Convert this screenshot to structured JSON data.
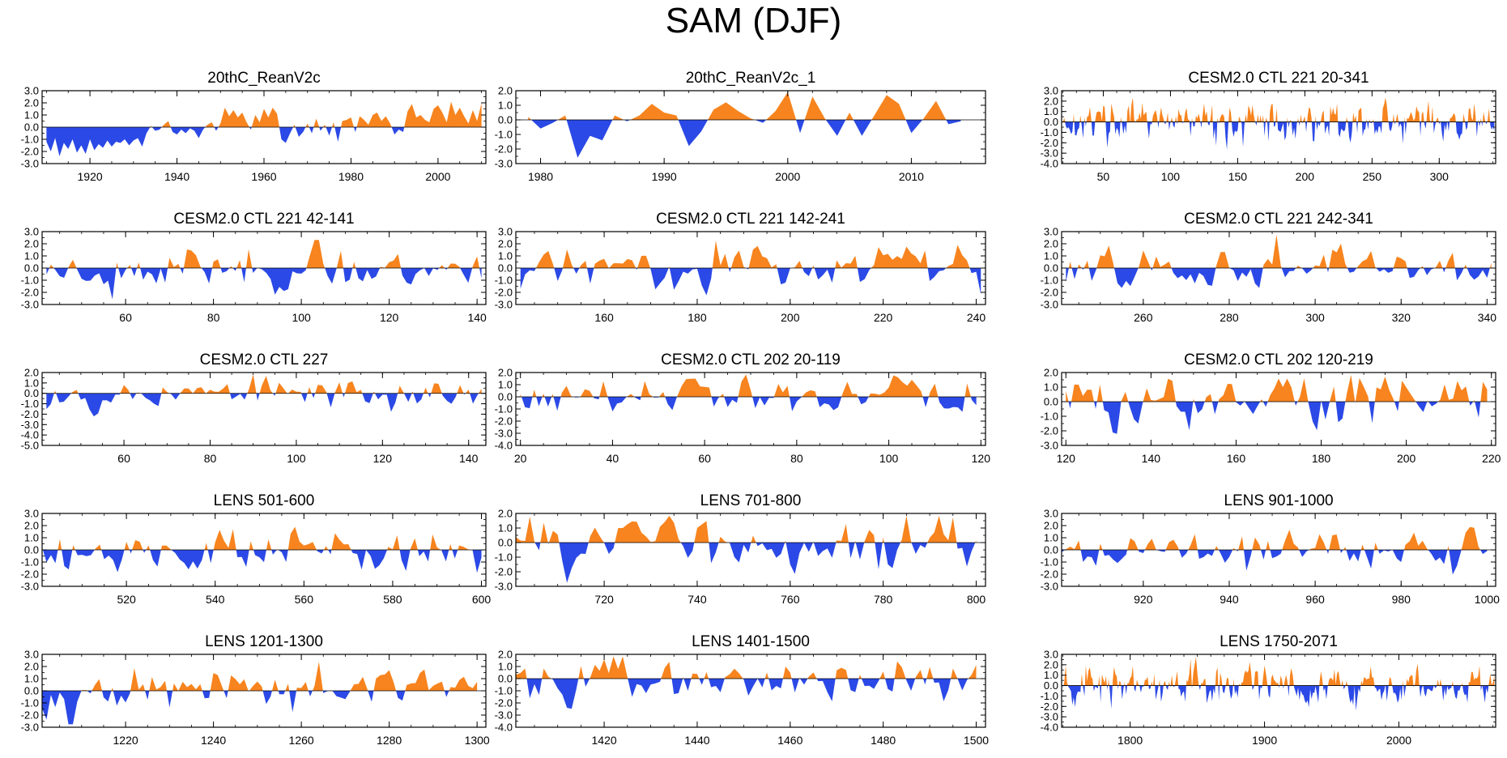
{
  "figure": {
    "title": "SAM (DJF)"
  },
  "colors": {
    "positive": "#f7841e",
    "negative": "#2b49e6",
    "frame": "#000000"
  },
  "chart_data": [
    {
      "type": "area",
      "title": "20thC_ReanV2c",
      "xlim": [
        1909,
        2011
      ],
      "ylim": [
        -3.0,
        3.0
      ],
      "yticks": [
        "3.0",
        "2.0",
        "1.0",
        "0.0",
        "-1.0",
        "-2.0",
        "-3.0"
      ],
      "xticks": [
        1920,
        1940,
        1960,
        1980,
        2000
      ],
      "x": [
        1910,
        1911,
        1912,
        1913,
        1914,
        1915,
        1916,
        1917,
        1918,
        1919,
        1920,
        1921,
        1922,
        1923,
        1924,
        1925,
        1926,
        1927,
        1928,
        1929,
        1930,
        1931,
        1932,
        1933,
        1934,
        1935,
        1936,
        1937,
        1938,
        1939,
        1940,
        1941,
        1942,
        1943,
        1944,
        1945,
        1946,
        1947,
        1948,
        1949,
        1950,
        1951,
        1952,
        1953,
        1954,
        1955,
        1956,
        1957,
        1958,
        1959,
        1960,
        1961,
        1962,
        1963,
        1964,
        1965,
        1966,
        1967,
        1968,
        1969,
        1970,
        1971,
        1972,
        1973,
        1974,
        1975,
        1976,
        1977,
        1978,
        1979,
        1980,
        1981,
        1982,
        1983,
        1984,
        1985,
        1986,
        1987,
        1988,
        1989,
        1990,
        1991,
        1992,
        1993,
        1994,
        1995,
        1996,
        1997,
        1998,
        1999,
        2000,
        2001,
        2002,
        2003,
        2004,
        2005,
        2006,
        2007,
        2008,
        2009,
        2010
      ],
      "values": [
        -1.2,
        -2.0,
        -0.9,
        -2.4,
        -1.3,
        -1.8,
        -1.0,
        -2.1,
        -1.5,
        -2.2,
        -1.0,
        -1.9,
        -1.4,
        -1.7,
        -1.1,
        -1.6,
        -1.2,
        -1.3,
        -1.0,
        -1.5,
        -1.1,
        -0.9,
        -1.6,
        -0.5,
        0.1,
        -0.3,
        -0.2,
        0.2,
        0.5,
        -0.4,
        -0.6,
        -0.2,
        -0.5,
        -0.1,
        -0.3,
        -0.9,
        -0.2,
        0.2,
        0.4,
        -0.3,
        0.3,
        1.6,
        0.9,
        1.4,
        0.8,
        1.2,
        0.4,
        -0.2,
        1.0,
        0.4,
        1.5,
        0.8,
        1.6,
        1.1,
        -1.0,
        -1.3,
        -0.5,
        0.2,
        -0.8,
        -0.4,
        0.3,
        -0.5,
        0.7,
        -0.3,
        0.2,
        -0.7,
        0.4,
        -1.2,
        0.5,
        0.6,
        0.8,
        -0.4,
        0.9,
        0.6,
        0.2,
        1.0,
        1.2,
        0.5,
        0.9,
        0.3,
        -0.6,
        -0.2,
        -0.4,
        1.3,
        1.9,
        0.8,
        1.0,
        0.6,
        0.4,
        1.5,
        1.8,
        1.2,
        0.4,
        2.1,
        1.0,
        1.6,
        0.9,
        0.3,
        1.4,
        0.5,
        2.0
      ]
    },
    {
      "type": "area",
      "title": "20thC_ReanV2c_1",
      "xlim": [
        1978,
        2016
      ],
      "ylim": [
        -3.0,
        2.0
      ],
      "yticks": [
        "2.0",
        "1.0",
        "0.0",
        "-1.0",
        "-2.0",
        "-3.0"
      ],
      "xticks": [
        1980,
        1990,
        2000,
        2010
      ],
      "x": [
        1979,
        1980,
        1981,
        1982,
        1983,
        1984,
        1985,
        1986,
        1987,
        1988,
        1989,
        1990,
        1991,
        1992,
        1993,
        1994,
        1995,
        1996,
        1997,
        1998,
        1999,
        2000,
        2001,
        2002,
        2003,
        2004,
        2005,
        2006,
        2007,
        2008,
        2009,
        2010,
        2011,
        2012,
        2013,
        2014
      ],
      "values": [
        0.2,
        -0.6,
        -0.2,
        0.3,
        -2.6,
        -1.1,
        -1.4,
        0.3,
        -0.1,
        0.3,
        1.1,
        0.5,
        0.3,
        -1.8,
        -0.8,
        0.7,
        1.2,
        0.6,
        0.1,
        -0.2,
        0.6,
        1.9,
        -0.9,
        1.6,
        0.1,
        -1.1,
        0.5,
        -1.1,
        0.3,
        1.7,
        1.1,
        -0.9,
        0.1,
        1.3,
        -0.3,
        -0.1
      ]
    },
    {
      "type": "area",
      "title": "CESM2.0 CTL 221 20-341",
      "xlim": [
        19,
        342
      ],
      "ylim": [
        -4.0,
        3.0
      ],
      "yticks": [
        "3.0",
        "2.0",
        "1.0",
        "0.0",
        "-1.0",
        "-2.0",
        "-3.0",
        "-4.0"
      ],
      "xticks": [
        50,
        100,
        150,
        200,
        250,
        300
      ],
      "x_range": [
        20,
        341
      ],
      "seed": 17,
      "amplitude": 1.05
    },
    {
      "type": "area",
      "title": "CESM2.0 CTL 221 42-141",
      "xlim": [
        41,
        142
      ],
      "ylim": [
        -3.0,
        3.0
      ],
      "yticks": [
        "3.0",
        "2.0",
        "1.0",
        "0.0",
        "-1.0",
        "-2.0",
        "-3.0"
      ],
      "xticks": [
        60,
        80,
        100,
        120,
        140
      ],
      "x_range": [
        42,
        141
      ],
      "seed": 23,
      "amplitude": 1.0
    },
    {
      "type": "area",
      "title": "CESM2.0 CTL 221 142-241",
      "xlim": [
        141,
        242
      ],
      "ylim": [
        -3.0,
        3.0
      ],
      "yticks": [
        "3.0",
        "2.0",
        "1.0",
        "0.0",
        "-1.0",
        "-2.0",
        "-3.0"
      ],
      "xticks": [
        160,
        180,
        200,
        220,
        240
      ],
      "x_range": [
        142,
        241
      ],
      "seed": 31,
      "amplitude": 0.95
    },
    {
      "type": "area",
      "title": "CESM2.0 CTL 221 242-341",
      "xlim": [
        241,
        342
      ],
      "ylim": [
        -3.0,
        3.0
      ],
      "yticks": [
        "3.0",
        "2.0",
        "1.0",
        "0.0",
        "-1.0",
        "-2.0",
        "-3.0"
      ],
      "xticks": [
        260,
        280,
        300,
        320,
        340
      ],
      "x_range": [
        242,
        341
      ],
      "seed": 47,
      "amplitude": 1.0
    },
    {
      "type": "area",
      "title": "CESM2.0 CTL 227",
      "xlim": [
        41,
        144
      ],
      "ylim": [
        -5.0,
        2.0
      ],
      "yticks": [
        "2.0",
        "1.0",
        "0.0",
        "-1.0",
        "-2.0",
        "-3.0",
        "-4.0",
        "-5.0"
      ],
      "xticks": [
        60,
        80,
        100,
        120,
        140
      ],
      "x_range": [
        42,
        143
      ],
      "seed": 53,
      "amplitude": 0.9
    },
    {
      "type": "area",
      "title": "CESM2.0 CTL 202 20-119",
      "xlim": [
        19,
        121
      ],
      "ylim": [
        -4.0,
        2.0
      ],
      "yticks": [
        "2.0",
        "1.0",
        "0.0",
        "-1.0",
        "-2.0",
        "-3.0",
        "-4.0"
      ],
      "xticks": [
        20,
        40,
        60,
        80,
        100,
        120
      ],
      "x_range": [
        20,
        119
      ],
      "seed": 61,
      "amplitude": 1.0
    },
    {
      "type": "area",
      "title": "CESM2.0 CTL 202 120-219",
      "xlim": [
        119,
        221
      ],
      "ylim": [
        -3.0,
        2.0
      ],
      "yticks": [
        "2.0",
        "1.0",
        "0.0",
        "-1.0",
        "-2.0",
        "-3.0"
      ],
      "xticks": [
        120,
        140,
        160,
        180,
        200,
        220
      ],
      "x_range": [
        120,
        219
      ],
      "seed": 73,
      "amplitude": 1.0
    },
    {
      "type": "area",
      "title": "LENS 501-600",
      "xlim": [
        501,
        601
      ],
      "ylim": [
        -3.0,
        3.0
      ],
      "yticks": [
        "3.0",
        "2.0",
        "1.0",
        "0.0",
        "-1.0",
        "-2.0",
        "-3.0"
      ],
      "xticks": [
        520,
        540,
        560,
        580,
        600
      ],
      "x_range": [
        501,
        600
      ],
      "seed": 79,
      "amplitude": 1.0
    },
    {
      "type": "area",
      "title": "LENS 701-800",
      "xlim": [
        701,
        802
      ],
      "ylim": [
        -3.0,
        2.0
      ],
      "yticks": [
        "2.0",
        "1.0",
        "0.0",
        "-1.0",
        "-2.0",
        "-3.0"
      ],
      "xticks": [
        720,
        740,
        760,
        780,
        800
      ],
      "x_range": [
        701,
        800
      ],
      "seed": 83,
      "amplitude": 1.05
    },
    {
      "type": "area",
      "title": "LENS 901-1000",
      "xlim": [
        901,
        1002
      ],
      "ylim": [
        -3.0,
        3.0
      ],
      "yticks": [
        "3.0",
        "2.0",
        "1.0",
        "0.0",
        "-1.0",
        "-2.0",
        "-3.0"
      ],
      "xticks": [
        920,
        940,
        960,
        980,
        1000
      ],
      "x_range": [
        901,
        1000
      ],
      "seed": 89,
      "amplitude": 1.0
    },
    {
      "type": "area",
      "title": "LENS 1201-1300",
      "xlim": [
        1201,
        1302
      ],
      "ylim": [
        -3.0,
        3.0
      ],
      "yticks": [
        "3.0",
        "2.0",
        "1.0",
        "0.0",
        "-1.0",
        "-2.0",
        "-3.0"
      ],
      "xticks": [
        1220,
        1240,
        1260,
        1280,
        1300
      ],
      "x_range": [
        1201,
        1300
      ],
      "seed": 97,
      "amplitude": 1.0
    },
    {
      "type": "area",
      "title": "LENS 1401-1500",
      "xlim": [
        1401,
        1502
      ],
      "ylim": [
        -4.0,
        2.0
      ],
      "yticks": [
        "2.0",
        "1.0",
        "0.0",
        "-1.0",
        "-2.0",
        "-3.0",
        "-4.0"
      ],
      "xticks": [
        1420,
        1440,
        1460,
        1480,
        1500
      ],
      "x_range": [
        1401,
        1500
      ],
      "seed": 101,
      "amplitude": 1.05
    },
    {
      "type": "area",
      "title": "LENS 1750-2071",
      "xlim": [
        1749,
        2072
      ],
      "ylim": [
        -4.0,
        3.0
      ],
      "yticks": [
        "3.0",
        "2.0",
        "1.0",
        "0.0",
        "-1.0",
        "-2.0",
        "-3.0",
        "-4.0"
      ],
      "xticks": [
        1800,
        1900,
        2000
      ],
      "x_range": [
        1750,
        2071
      ],
      "seed": 107,
      "amplitude": 1.05
    }
  ]
}
